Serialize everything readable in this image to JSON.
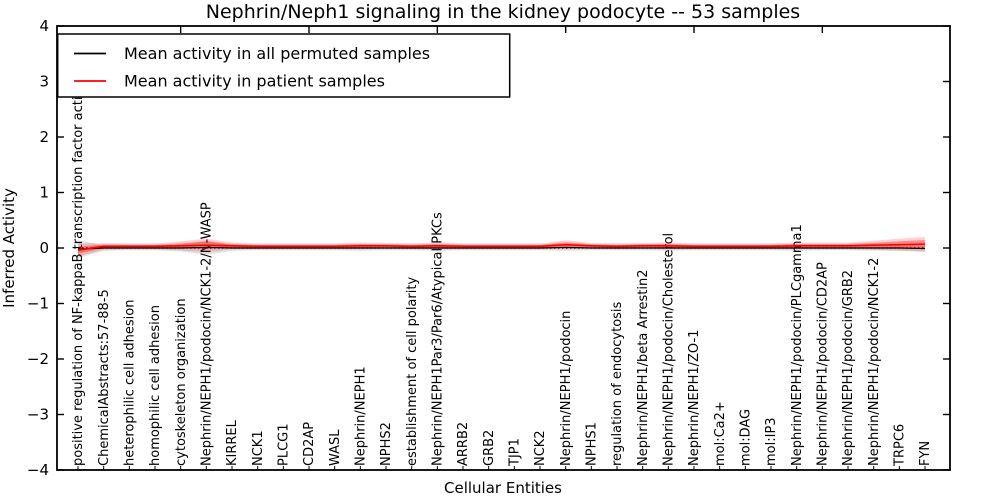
{
  "legend": {
    "entries": [
      {
        "label": "Mean activity in all permuted samples",
        "color": "#000000"
      },
      {
        "label": "Mean activity in patient samples",
        "color": "#ff0000"
      }
    ]
  },
  "chart_data": {
    "type": "line",
    "title": "Nephrin/Neph1 signaling in the kidney podocyte -- 53 samples",
    "xlabel": "Cellular Entities",
    "ylabel": "Inferred Activity",
    "ylim": [
      -4,
      4
    ],
    "grid": false,
    "legend_position": "upper left",
    "zero_line": {
      "style": "dotted",
      "color": "#000000",
      "value": 0
    },
    "yticks": [
      {
        "label": "4",
        "v": 4
      },
      {
        "label": "3",
        "v": 3
      },
      {
        "label": "2",
        "v": 2
      },
      {
        "label": "1",
        "v": 1
      },
      {
        "label": "0",
        "v": 0
      },
      {
        "label": "−1",
        "v": -1
      },
      {
        "label": "−2",
        "v": -2
      },
      {
        "label": "−3",
        "v": -3
      },
      {
        "label": "−4",
        "v": -4
      }
    ],
    "categories": [
      "positive regulation of NF-kappaB transcription factor activity",
      "ChemicalAbstracts:57-88-5",
      "heterophilic cell adhesion",
      "homophilic cell adhesion",
      "cytoskeleton organization",
      "Nephrin/NEPH1/podocin/NCK1-2/N-WASP",
      "KIRREL",
      "NCK1",
      "PLCG1",
      "CD2AP",
      "WASL",
      "Nephrin/NEPH1",
      "NPHS2",
      "establishment of cell polarity",
      "Nephrin/NEPH1Par3/Par6/Atypical PKCs",
      "ARRB2",
      "GRB2",
      "TJP1",
      "NCK2",
      "Nephrin/NEPH1/podocin",
      "NPHS1",
      "regulation of endocytosis",
      "Nephrin/NEPH1/beta Arrestin2",
      "Nephrin/NEPH1/podocin/Cholesterol",
      "Nephrin/NEPH1/ZO-1",
      "mol:Ca2+",
      "mol:DAG",
      "mol:IP3",
      "Nephrin/NEPH1/podocin/PLCgamma1",
      "Nephrin/NEPH1/podocin/CD2AP",
      "Nephrin/NEPH1/podocin/GRB2",
      "Nephrin/NEPH1/podocin/NCK1-2",
      "TRPC6",
      "FYN"
    ],
    "series": [
      {
        "name": "Mean activity in all permuted samples",
        "color": "#000000",
        "band_color": "rgba(0,0,0,0.13)",
        "mean": [
          -0.02,
          0,
          0,
          0,
          0,
          0.01,
          0,
          0,
          0,
          0,
          0,
          0,
          0,
          0,
          0,
          0,
          0,
          0,
          0,
          0.01,
          0,
          0,
          0,
          0,
          0,
          0,
          0,
          0,
          0,
          0,
          0,
          0,
          0,
          -0.01
        ],
        "std": [
          0.16,
          0.05,
          0.04,
          0.04,
          0.06,
          0.13,
          0.05,
          0.04,
          0.04,
          0.04,
          0.04,
          0.05,
          0.04,
          0.04,
          0.05,
          0.04,
          0.04,
          0.04,
          0.04,
          0.06,
          0.04,
          0.04,
          0.04,
          0.05,
          0.04,
          0.04,
          0.04,
          0.04,
          0.05,
          0.04,
          0.04,
          0.05,
          0.05,
          0.06
        ]
      },
      {
        "name": "Mean activity in patient samples",
        "color": "#ff0000",
        "band_color": "rgba(255,0,0,0.18)",
        "band_inner_color": "rgba(255,0,0,0.35)",
        "mean": [
          -0.04,
          0.03,
          0.03,
          0.03,
          0.04,
          0.05,
          0.04,
          0.03,
          0.03,
          0.03,
          0.03,
          0.04,
          0.04,
          0.03,
          0.04,
          0.03,
          0.03,
          0.03,
          0.03,
          0.06,
          0.04,
          0.03,
          0.04,
          0.04,
          0.03,
          0.03,
          0.03,
          0.03,
          0.04,
          0.04,
          0.04,
          0.05,
          0.06,
          0.07
        ],
        "std": [
          0.11,
          0.06,
          0.05,
          0.05,
          0.08,
          0.12,
          0.06,
          0.05,
          0.05,
          0.05,
          0.05,
          0.06,
          0.05,
          0.05,
          0.06,
          0.05,
          0.05,
          0.05,
          0.05,
          0.08,
          0.05,
          0.05,
          0.05,
          0.06,
          0.05,
          0.05,
          0.05,
          0.05,
          0.06,
          0.06,
          0.06,
          0.08,
          0.11,
          0.13
        ]
      }
    ]
  }
}
